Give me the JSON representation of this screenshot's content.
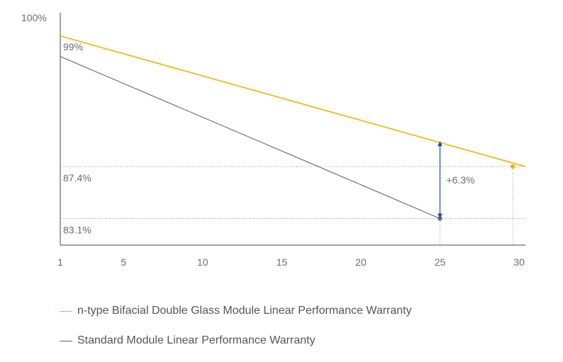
{
  "chart_data": {
    "type": "line",
    "title": "",
    "xlabel": "",
    "ylabel": "",
    "x_ticks": [
      1,
      5,
      10,
      15,
      20,
      25,
      30
    ],
    "xlim": [
      1,
      30.4
    ],
    "ylim": [
      80.9,
      100
    ],
    "y_top_label": "100%",
    "series": [
      {
        "name": "n-type Bifacial Double Glass Module Linear Performance Warranty",
        "color": "#f0b400",
        "x": [
          1,
          30.4
        ],
        "y": [
          98.2,
          87.4
        ]
      },
      {
        "name": "Standard Module Linear Performance Warranty",
        "color": "#666666",
        "x": [
          1,
          25
        ],
        "y": [
          96.5,
          83.1
        ]
      }
    ],
    "annotations": {
      "start_label": "99%",
      "ref_lines": [
        {
          "value": 87.4,
          "label": "87.4%",
          "x_end": 29.6,
          "marker_color": "#f0b400"
        },
        {
          "value": 83.1,
          "label": "83.1%",
          "x_end": 25,
          "marker_color": "#707070"
        }
      ],
      "gap": {
        "x": 25,
        "from": 83.1,
        "to": 89.5,
        "label": "+6.3%",
        "color": "#1f4e9c"
      }
    }
  }
}
